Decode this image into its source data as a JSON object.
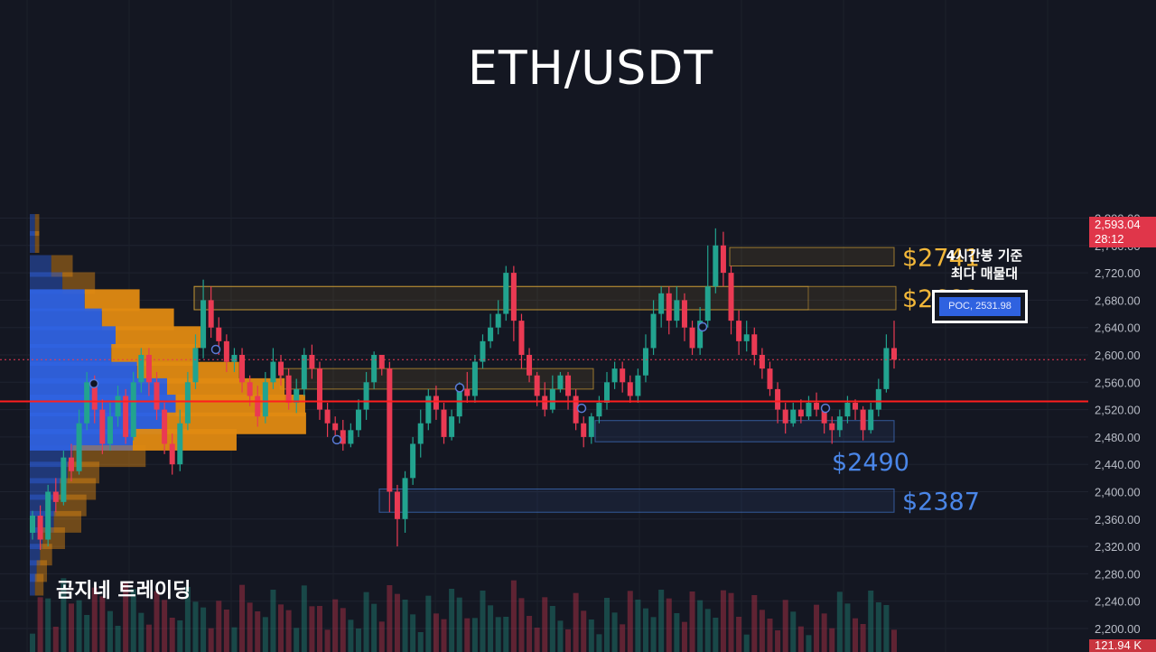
{
  "title": "ETH/USDT",
  "watermark": "곰지네 트레이딩",
  "poc_note": [
    "4시간봉 기준",
    "최다 매물대"
  ],
  "poc_label": "POC, 2531.98",
  "current_price": {
    "value": "2,593.04",
    "countdown": "28:12"
  },
  "volume_tag": "121.94 K",
  "colors": {
    "background": "#141722",
    "bull": "#22a38f",
    "bear": "#ea3a53",
    "resistance": "#f2b739",
    "support": "#4a86e8",
    "poc_line": "#ff1e1e",
    "vp_up": "#2f62e0",
    "vp_down": "#e08a12"
  },
  "chart_data": {
    "type": "candlestick",
    "y_axis": {
      "ticks": [
        "2,800.00",
        "2,760.00",
        "2,720.00",
        "2,680.00",
        "2,640.00",
        "2,600.00",
        "2,560.00",
        "2,520.00",
        "2,480.00",
        "2,440.00",
        "2,400.00",
        "2,360.00",
        "2,320.00",
        "2,280.00",
        "2,240.00",
        "2,200.00"
      ],
      "range": [
        2200,
        2800
      ]
    },
    "zones": [
      {
        "name": "resistance-2741",
        "label": "$2741",
        "low": 2730,
        "high": 2757,
        "kind": "resistance"
      },
      {
        "name": "resistance-2682",
        "label": "$2682",
        "low": 2666,
        "high": 2700,
        "kind": "resistance"
      },
      {
        "name": "resistance-2560",
        "label": "",
        "low": 2550,
        "high": 2580,
        "kind": "resistance"
      },
      {
        "name": "support-2490",
        "label": "$2490",
        "low": 2473,
        "high": 2504,
        "kind": "support"
      },
      {
        "name": "support-2387",
        "label": "$2387",
        "low": 2370,
        "high": 2404,
        "kind": "support"
      }
    ],
    "poc": 2531.98,
    "current": 2593.04,
    "candles": [
      [
        2340,
        2365,
        2330,
        2372
      ],
      [
        2365,
        2330,
        2315,
        2380
      ],
      [
        2330,
        2400,
        2320,
        2410
      ],
      [
        2400,
        2385,
        2370,
        2420
      ],
      [
        2385,
        2450,
        2380,
        2460
      ],
      [
        2450,
        2430,
        2415,
        2470
      ],
      [
        2430,
        2500,
        2425,
        2520
      ],
      [
        2500,
        2560,
        2490,
        2575
      ],
      [
        2560,
        2520,
        2500,
        2570
      ],
      [
        2520,
        2470,
        2455,
        2535
      ],
      [
        2470,
        2510,
        2460,
        2530
      ],
      [
        2510,
        2540,
        2495,
        2555
      ],
      [
        2540,
        2480,
        2470,
        2550
      ],
      [
        2480,
        2560,
        2475,
        2575
      ],
      [
        2560,
        2600,
        2545,
        2610
      ],
      [
        2600,
        2560,
        2540,
        2610
      ],
      [
        2560,
        2520,
        2505,
        2575
      ],
      [
        2520,
        2470,
        2455,
        2530
      ],
      [
        2470,
        2440,
        2425,
        2485
      ],
      [
        2440,
        2500,
        2430,
        2520
      ],
      [
        2500,
        2560,
        2490,
        2575
      ],
      [
        2560,
        2610,
        2550,
        2630
      ],
      [
        2610,
        2680,
        2595,
        2710
      ],
      [
        2680,
        2640,
        2625,
        2700
      ],
      [
        2640,
        2620,
        2600,
        2655
      ],
      [
        2620,
        2590,
        2575,
        2630
      ],
      [
        2590,
        2600,
        2575,
        2610
      ],
      [
        2600,
        2560,
        2545,
        2610
      ],
      [
        2560,
        2540,
        2525,
        2570
      ],
      [
        2540,
        2510,
        2495,
        2555
      ],
      [
        2510,
        2560,
        2500,
        2575
      ],
      [
        2560,
        2590,
        2550,
        2610
      ],
      [
        2590,
        2570,
        2555,
        2600
      ],
      [
        2570,
        2530,
        2520,
        2580
      ],
      [
        2530,
        2550,
        2515,
        2565
      ],
      [
        2550,
        2600,
        2540,
        2610
      ],
      [
        2600,
        2580,
        2565,
        2615
      ],
      [
        2580,
        2520,
        2505,
        2590
      ],
      [
        2520,
        2500,
        2480,
        2530
      ],
      [
        2500,
        2490,
        2475,
        2510
      ],
      [
        2490,
        2470,
        2460,
        2505
      ],
      [
        2470,
        2490,
        2465,
        2500
      ],
      [
        2490,
        2520,
        2480,
        2535
      ],
      [
        2520,
        2560,
        2505,
        2575
      ],
      [
        2560,
        2600,
        2550,
        2605
      ],
      [
        2600,
        2580,
        2570,
        2600
      ],
      [
        2580,
        2400,
        2370,
        2590
      ],
      [
        2400,
        2360,
        2320,
        2410
      ],
      [
        2360,
        2420,
        2340,
        2430
      ],
      [
        2420,
        2470,
        2410,
        2480
      ],
      [
        2470,
        2500,
        2450,
        2520
      ],
      [
        2500,
        2540,
        2490,
        2550
      ],
      [
        2540,
        2520,
        2505,
        2555
      ],
      [
        2520,
        2480,
        2470,
        2530
      ],
      [
        2480,
        2510,
        2475,
        2520
      ],
      [
        2510,
        2550,
        2500,
        2560
      ],
      [
        2550,
        2540,
        2530,
        2575
      ],
      [
        2540,
        2590,
        2530,
        2600
      ],
      [
        2590,
        2620,
        2580,
        2630
      ],
      [
        2620,
        2640,
        2610,
        2660
      ],
      [
        2640,
        2660,
        2630,
        2680
      ],
      [
        2660,
        2720,
        2650,
        2730
      ],
      [
        2720,
        2650,
        2620,
        2730
      ],
      [
        2650,
        2600,
        2580,
        2660
      ],
      [
        2600,
        2570,
        2560,
        2610
      ],
      [
        2570,
        2540,
        2525,
        2575
      ],
      [
        2540,
        2520,
        2510,
        2560
      ],
      [
        2520,
        2550,
        2515,
        2570
      ],
      [
        2550,
        2570,
        2545,
        2575
      ],
      [
        2570,
        2540,
        2520,
        2575
      ],
      [
        2540,
        2500,
        2490,
        2550
      ],
      [
        2500,
        2480,
        2465,
        2510
      ],
      [
        2480,
        2510,
        2470,
        2515
      ],
      [
        2510,
        2530,
        2500,
        2540
      ],
      [
        2530,
        2560,
        2520,
        2575
      ],
      [
        2560,
        2580,
        2550,
        2590
      ],
      [
        2580,
        2560,
        2545,
        2590
      ],
      [
        2560,
        2540,
        2530,
        2570
      ],
      [
        2540,
        2570,
        2530,
        2580
      ],
      [
        2570,
        2610,
        2560,
        2630
      ],
      [
        2610,
        2660,
        2600,
        2680
      ],
      [
        2660,
        2690,
        2640,
        2700
      ],
      [
        2690,
        2650,
        2630,
        2700
      ],
      [
        2650,
        2680,
        2640,
        2700
      ],
      [
        2680,
        2640,
        2620,
        2690
      ],
      [
        2640,
        2610,
        2600,
        2650
      ],
      [
        2610,
        2650,
        2600,
        2670
      ],
      [
        2650,
        2700,
        2640,
        2760
      ],
      [
        2700,
        2760,
        2690,
        2785
      ],
      [
        2760,
        2720,
        2700,
        2780
      ],
      [
        2720,
        2650,
        2630,
        2730
      ],
      [
        2650,
        2620,
        2600,
        2665
      ],
      [
        2620,
        2630,
        2605,
        2650
      ],
      [
        2630,
        2600,
        2585,
        2640
      ],
      [
        2600,
        2580,
        2565,
        2610
      ],
      [
        2580,
        2550,
        2540,
        2590
      ],
      [
        2550,
        2520,
        2500,
        2560
      ],
      [
        2520,
        2500,
        2485,
        2530
      ],
      [
        2500,
        2520,
        2495,
        2530
      ],
      [
        2520,
        2510,
        2500,
        2535
      ],
      [
        2510,
        2530,
        2505,
        2540
      ],
      [
        2530,
        2520,
        2510,
        2545
      ],
      [
        2520,
        2500,
        2485,
        2525
      ],
      [
        2500,
        2490,
        2470,
        2510
      ],
      [
        2490,
        2510,
        2480,
        2520
      ],
      [
        2510,
        2530,
        2500,
        2540
      ],
      [
        2530,
        2520,
        2505,
        2535
      ],
      [
        2520,
        2490,
        2475,
        2525
      ],
      [
        2490,
        2520,
        2485,
        2530
      ],
      [
        2520,
        2550,
        2510,
        2565
      ],
      [
        2550,
        2610,
        2545,
        2630
      ],
      [
        2610,
        2593,
        2580,
        2650
      ]
    ],
    "volume_profile": [
      {
        "price": 2790,
        "up": 0.06,
        "down": 0.05
      },
      {
        "price": 2765,
        "up": 0.06,
        "down": 0.05
      },
      {
        "price": 2730,
        "up": 0.25,
        "down": 0.25
      },
      {
        "price": 2705,
        "up": 0.38,
        "down": 0.38
      },
      {
        "price": 2680,
        "up": 0.64,
        "down": 0.64
      },
      {
        "price": 2652,
        "up": 0.84,
        "down": 0.84
      },
      {
        "price": 2626,
        "up": 1.0,
        "down": 0.99
      },
      {
        "price": 2600,
        "up": 0.95,
        "down": 1.0
      },
      {
        "price": 2574,
        "up": 1.25,
        "down": 1.19
      },
      {
        "price": 2550,
        "up": 1.6,
        "down": 1.37
      },
      {
        "price": 2526,
        "up": 1.7,
        "down": 1.51
      },
      {
        "price": 2500,
        "up": 1.55,
        "down": 1.67
      },
      {
        "price": 2476,
        "up": 1.2,
        "down": 1.21
      },
      {
        "price": 2452,
        "up": 0.5,
        "down": 0.85
      },
      {
        "price": 2428,
        "up": 0.44,
        "down": 0.37
      },
      {
        "price": 2404,
        "up": 0.35,
        "down": 0.42
      },
      {
        "price": 2380,
        "up": 0.3,
        "down": 0.36
      },
      {
        "price": 2356,
        "up": 0.28,
        "down": 0.32
      },
      {
        "price": 2332,
        "up": 0.15,
        "down": 0.26
      },
      {
        "price": 2308,
        "up": 0.12,
        "down": 0.14
      },
      {
        "price": 2284,
        "up": 0.08,
        "down": 0.12
      },
      {
        "price": 2264,
        "up": 0.06,
        "down": 0.1
      }
    ]
  }
}
